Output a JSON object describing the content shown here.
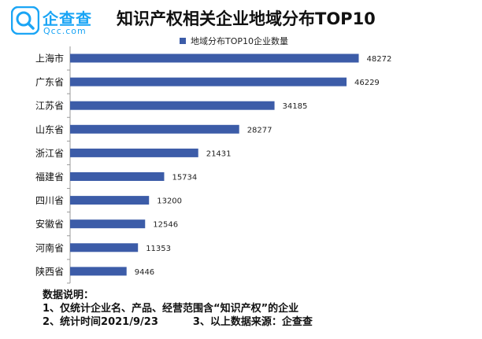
{
  "logo": {
    "name": "企查查",
    "domain": "Qcc.com"
  },
  "colors": {
    "bar": "#3c5ca8",
    "brand": "#1aa5f5"
  },
  "chart_data": {
    "type": "bar",
    "orientation": "horizontal",
    "title": "知识产权相关企业地域分布TOP10",
    "legend": "地域分布TOP10企业数量",
    "legend_position": "top",
    "categories": [
      "上海市",
      "广东省",
      "江苏省",
      "山东省",
      "浙江省",
      "福建省",
      "四川省",
      "安徽省",
      "河南省",
      "陕西省"
    ],
    "series": [
      {
        "name": "地域分布TOP10企业数量",
        "values": [
          48272,
          46229,
          34185,
          28277,
          21431,
          15734,
          13200,
          12546,
          11353,
          9446
        ]
      }
    ],
    "xlim": [
      0,
      54000
    ],
    "grid": false,
    "data_labels": true
  },
  "notes": {
    "heading": "数据说明：",
    "line1": "1、仅统计企业名、产品、经营范围含“知识产权”的企业",
    "line2a": "2、统计时间2021/9/23",
    "line2b": "3、以上数据来源：企查查"
  }
}
